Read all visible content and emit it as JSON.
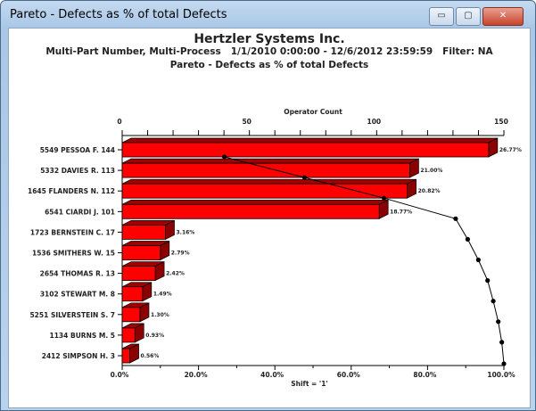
{
  "window": {
    "title": "Pareto - Defects as % of total Defects",
    "minimize": "▭",
    "maximize": "▢",
    "close": "✕"
  },
  "header": {
    "company": "Hertzler Systems Inc.",
    "subtitle": "Multi-Part Number, Multi-Process   1/1/2010 0:00:00 - 12/6/2012 23:59:59   Filter: NA",
    "chart_title": "Pareto - Defects as % of total Defects"
  },
  "colors": {
    "bar_front": "#ff0000",
    "bar_side": "#8b0000"
  },
  "chart_data": {
    "type": "bar",
    "orientation": "horizontal",
    "title": "Pareto - Defects as % of total Defects",
    "top_axis_label": "Operator Count",
    "top_axis_ticks": [
      "0",
      "50",
      "100",
      "150"
    ],
    "top_axis_range": [
      0,
      150
    ],
    "bottom_axis_label": "Shift = '1'",
    "bottom_axis_ticks": [
      "0.0%",
      "20.0%",
      "40.0%",
      "60.0%",
      "80.0%",
      "100.0%"
    ],
    "bottom_axis_range": [
      0,
      100
    ],
    "categories": [
      "5549 PESSOA F.  144",
      "5332 DAVIES R.  113",
      "1645 FLANDERS N.  112",
      "6541 CIARDI J.  101",
      "1723 BERNSTEIN C.  17",
      "1536 SMITHERS W.  15",
      "2654 THOMAS R.  13",
      "3102 STEWART M.  8",
      "5251 SILVERSTEIN S.  7",
      "1134 BURNS M.  5",
      "2412 SIMPSON H.  3"
    ],
    "values": [
      144,
      113,
      112,
      101,
      17,
      15,
      13,
      8,
      7,
      5,
      3
    ],
    "percent_labels": [
      "26.77%",
      "21.00%",
      "20.82%",
      "18.77%",
      "3.16%",
      "2.79%",
      "2.42%",
      "1.49%",
      "1.30%",
      "0.93%",
      "0.56%"
    ],
    "cumulative_percent": [
      26.77,
      47.77,
      68.59,
      87.36,
      90.52,
      93.31,
      95.73,
      97.22,
      98.52,
      99.45,
      100
    ]
  }
}
